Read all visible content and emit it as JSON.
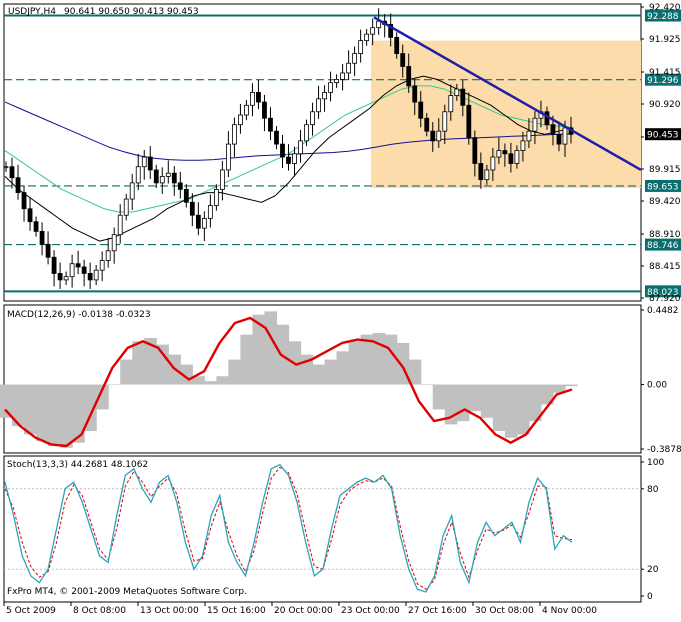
{
  "colors": {
    "background": "#ffffff",
    "frame": "#000000",
    "band": "#fcdcaa",
    "level_line": "#0a6e6e",
    "trend_line": "#1f1fa8",
    "candles": "#000000",
    "ma_fast": "#000000",
    "ma_mid": "#2ecc8a",
    "ma_slow": "#101090",
    "macd_hist": "#c0c0c0",
    "macd_signal": "#e00000",
    "stoch_main": "#2aa6b8",
    "stoch_signal": "#e00000",
    "price_tag_bg": "#0a6e6e",
    "current_tag_bg": "#000000"
  },
  "header": {
    "symbol_label": "USDJPY,H4",
    "ohlc": "90.641 90.650 90.413 90.453"
  },
  "footer": {
    "copyright": "FxPro MT4, © 2001-2009 MetaQuotes Software Corp."
  },
  "chart_data": [
    {
      "type": "candlestick",
      "title": "USDJPY,H4  90.641 90.650 90.413 90.453",
      "ylim": [
        87.92,
        92.42
      ],
      "ytick_labels": [
        "92.420",
        "91.925",
        "91.415",
        "90.920",
        "90.410",
        "89.915",
        "89.420",
        "88.910",
        "88.415",
        "87.920"
      ],
      "horizontal_levels": [
        {
          "label": "92.288",
          "value": 92.288,
          "style": "solid"
        },
        {
          "label": "91.296",
          "value": 91.296,
          "style": "dashed"
        },
        {
          "label": "89.653",
          "value": 89.653,
          "style": "dashed"
        },
        {
          "label": "88.746",
          "value": 88.746,
          "style": "dashed"
        },
        {
          "label": "88.023",
          "value": 88.023,
          "style": "solid"
        }
      ],
      "current_price": {
        "label": "90.453",
        "value": 90.453
      },
      "trendline": {
        "start_value": 92.26,
        "end_value": 89.9
      },
      "close_path": [
        89.95,
        89.78,
        89.55,
        89.3,
        89.1,
        88.95,
        88.75,
        88.55,
        88.3,
        88.2,
        88.25,
        88.45,
        88.4,
        88.3,
        88.2,
        88.35,
        88.5,
        88.65,
        88.9,
        89.2,
        89.45,
        89.7,
        89.95,
        90.1,
        89.9,
        89.7,
        89.8,
        89.85,
        89.7,
        89.6,
        89.4,
        89.2,
        89.0,
        89.15,
        89.35,
        89.6,
        89.9,
        90.3,
        90.6,
        90.75,
        90.9,
        91.1,
        90.95,
        90.7,
        90.5,
        90.3,
        90.1,
        90.0,
        90.15,
        90.35,
        90.6,
        90.8,
        91.0,
        91.1,
        91.25,
        91.3,
        91.4,
        91.55,
        91.7,
        91.9,
        92.0,
        92.1,
        92.2,
        92.15,
        91.95,
        91.7,
        91.5,
        91.2,
        90.95,
        90.7,
        90.5,
        90.35,
        90.5,
        90.8,
        91.05,
        91.15,
        90.9,
        90.4,
        90.0,
        89.75,
        89.9,
        90.1,
        90.2,
        90.15,
        90.0,
        90.2,
        90.35,
        90.5,
        90.7,
        90.8,
        90.6,
        90.45,
        90.3,
        90.55,
        90.45
      ],
      "ma_fast": [
        89.8,
        89.6,
        89.45,
        89.3,
        89.15,
        89.0,
        88.9,
        88.8,
        88.85,
        88.95,
        89.05,
        89.15,
        89.3,
        89.4,
        89.5,
        89.55,
        89.55,
        89.5,
        89.45,
        89.4,
        89.5,
        89.7,
        89.95,
        90.2,
        90.4,
        90.55,
        90.7,
        90.85,
        91.05,
        91.2,
        91.3,
        91.35,
        91.3,
        91.2,
        91.1,
        91.0,
        90.9,
        90.75,
        90.6,
        90.5,
        90.45,
        90.5,
        90.55
      ],
      "ma_mid": [
        90.2,
        90.05,
        89.9,
        89.75,
        89.6,
        89.5,
        89.4,
        89.3,
        89.25,
        89.25,
        89.3,
        89.35,
        89.4,
        89.45,
        89.55,
        89.65,
        89.75,
        89.85,
        89.95,
        90.05,
        90.15,
        90.3,
        90.45,
        90.6,
        90.75,
        90.85,
        90.95,
        91.05,
        91.15,
        91.2,
        91.2,
        91.15,
        91.05,
        90.95,
        90.85,
        90.75,
        90.7,
        90.65,
        90.6,
        90.58,
        90.56
      ],
      "ma_slow": [
        90.95,
        90.85,
        90.75,
        90.65,
        90.55,
        90.45,
        90.35,
        90.25,
        90.18,
        90.12,
        90.08,
        90.06,
        90.05,
        90.05,
        90.06,
        90.08,
        90.1,
        90.12,
        90.13,
        90.14,
        90.15,
        90.16,
        90.17,
        90.19,
        90.22,
        90.26,
        90.3,
        90.33,
        90.35,
        90.37,
        90.38,
        90.39,
        90.4,
        90.41,
        90.42,
        90.43,
        90.44,
        90.45,
        90.46
      ]
    },
    {
      "type": "bar",
      "title": "MACD(12,26,9) -0.0138 -0.0323",
      "ylim": [
        -0.3878,
        0.4482
      ],
      "ytick_labels": [
        "0.4482",
        "0.00",
        "-0.3878"
      ],
      "histogram": [
        -0.2,
        -0.25,
        -0.3,
        -0.34,
        -0.37,
        -0.38,
        -0.35,
        -0.28,
        -0.15,
        0.0,
        0.15,
        0.26,
        0.28,
        0.24,
        0.18,
        0.12,
        0.05,
        0.02,
        0.05,
        0.15,
        0.3,
        0.42,
        0.44,
        0.36,
        0.26,
        0.18,
        0.12,
        0.15,
        0.2,
        0.26,
        0.3,
        0.31,
        0.3,
        0.25,
        0.15,
        0.0,
        -0.15,
        -0.24,
        -0.22,
        -0.16,
        -0.2,
        -0.28,
        -0.32,
        -0.3,
        -0.22,
        -0.12,
        -0.05,
        -0.01
      ],
      "signal": [
        -0.15,
        -0.25,
        -0.32,
        -0.36,
        -0.37,
        -0.3,
        -0.1,
        0.1,
        0.22,
        0.26,
        0.22,
        0.1,
        0.03,
        0.08,
        0.25,
        0.37,
        0.4,
        0.34,
        0.18,
        0.12,
        0.15,
        0.2,
        0.25,
        0.27,
        0.26,
        0.22,
        0.1,
        -0.1,
        -0.22,
        -0.2,
        -0.15,
        -0.2,
        -0.3,
        -0.35,
        -0.3,
        -0.18,
        -0.06,
        -0.03
      ]
    },
    {
      "type": "line",
      "title": "Stoch(13,3,3) 44.2681 48.1062",
      "ylim": [
        0,
        100
      ],
      "ytick_labels": [
        "100",
        "80",
        "20",
        "0"
      ],
      "main": [
        85,
        60,
        30,
        15,
        10,
        20,
        50,
        80,
        85,
        70,
        50,
        30,
        25,
        60,
        90,
        95,
        80,
        70,
        85,
        90,
        70,
        40,
        20,
        30,
        60,
        75,
        40,
        25,
        15,
        40,
        70,
        95,
        98,
        90,
        70,
        40,
        15,
        20,
        50,
        75,
        80,
        85,
        88,
        85,
        90,
        80,
        45,
        20,
        5,
        3,
        15,
        45,
        60,
        25,
        10,
        40,
        55,
        45,
        50,
        55,
        40,
        70,
        88,
        80,
        35,
        45,
        40
      ],
      "signal": [
        80,
        65,
        40,
        22,
        14,
        18,
        40,
        70,
        83,
        75,
        55,
        35,
        27,
        50,
        82,
        93,
        85,
        74,
        82,
        88,
        76,
        48,
        26,
        28,
        52,
        70,
        48,
        30,
        18,
        34,
        62,
        88,
        96,
        92,
        76,
        48,
        22,
        20,
        42,
        68,
        78,
        83,
        86,
        85,
        88,
        82,
        52,
        26,
        9,
        5,
        12,
        38,
        55,
        32,
        14,
        34,
        50,
        47,
        49,
        53,
        44,
        62,
        82,
        82,
        45,
        43,
        42
      ]
    }
  ],
  "axes": {
    "x_labels": [
      "5 Oct 2009",
      "8 Oct 08:00",
      "13 Oct 00:00",
      "15 Oct 16:00",
      "20 Oct 00:00",
      "23 Oct 00:00",
      "27 Oct 16:00",
      "30 Oct 08:00",
      "4 Nov 00:00"
    ]
  }
}
